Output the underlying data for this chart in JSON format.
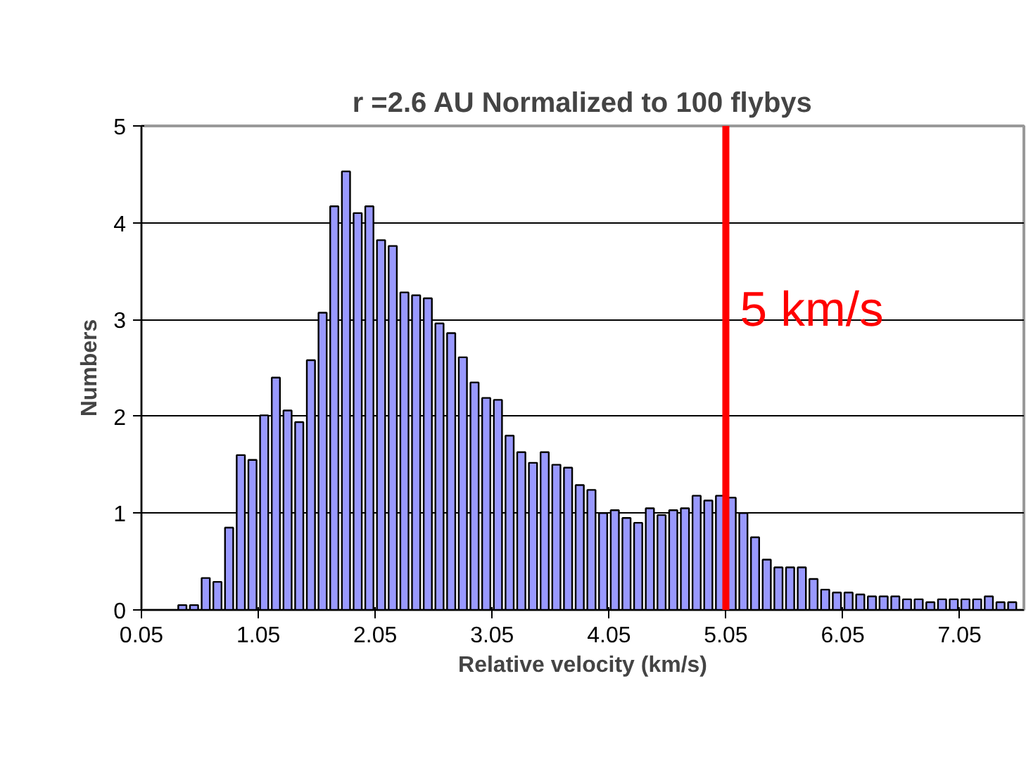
{
  "chart_data": {
    "type": "bar",
    "title": "r =2.6 AU Normalized to 100 flybys",
    "xlabel": "Relative velocity (km/s)",
    "ylabel": "Numbers",
    "x": [
      0.4,
      0.5,
      0.6,
      0.7,
      0.8,
      0.9,
      1.0,
      1.1,
      1.2,
      1.3,
      1.4,
      1.5,
      1.6,
      1.7,
      1.8,
      1.9,
      2.0,
      2.1,
      2.2,
      2.3,
      2.4,
      2.5,
      2.6,
      2.7,
      2.8,
      2.9,
      3.0,
      3.1,
      3.2,
      3.3,
      3.4,
      3.5,
      3.6,
      3.7,
      3.8,
      3.9,
      4.0,
      4.1,
      4.2,
      4.3,
      4.4,
      4.5,
      4.6,
      4.7,
      4.8,
      4.9,
      5.0,
      5.1,
      5.2,
      5.3,
      5.4,
      5.5,
      5.6,
      5.7,
      5.8,
      5.9,
      6.0,
      6.1,
      6.2,
      6.3,
      6.4,
      6.5,
      6.6,
      6.7,
      6.8,
      6.9,
      7.0,
      7.1,
      7.2,
      7.3,
      7.4,
      7.5
    ],
    "values": [
      0.05,
      0.05,
      0.33,
      0.29,
      0.85,
      1.6,
      1.55,
      2.01,
      2.4,
      2.06,
      1.94,
      2.58,
      3.07,
      4.17,
      4.53,
      4.1,
      4.17,
      3.82,
      3.76,
      3.28,
      3.25,
      3.22,
      2.96,
      2.86,
      2.61,
      2.35,
      2.19,
      2.17,
      1.8,
      1.63,
      1.52,
      1.63,
      1.5,
      1.47,
      1.29,
      1.24,
      1.0,
      1.03,
      0.95,
      0.9,
      1.05,
      0.98,
      1.03,
      1.05,
      1.18,
      1.13,
      1.18,
      1.16,
      1.0,
      0.75,
      0.52,
      0.44,
      0.44,
      0.44,
      0.32,
      0.21,
      0.18,
      0.18,
      0.16,
      0.14,
      0.14,
      0.14,
      0.11,
      0.11,
      0.08,
      0.11,
      0.11,
      0.11,
      0.11,
      0.14,
      0.08,
      0.08
    ],
    "color": "#9999ff",
    "xlim": [
      0.05,
      7.6
    ],
    "xticks": [
      0.05,
      1.05,
      2.05,
      3.05,
      4.05,
      5.05,
      6.05,
      7.05
    ],
    "ylim": [
      0,
      5
    ],
    "yticks": [
      0,
      1,
      2,
      3,
      4,
      5
    ],
    "grid": "y",
    "ref_lines": [
      {
        "axis": "x",
        "value": 5.05,
        "label": "5 km/s",
        "color": "#ff0000"
      }
    ]
  }
}
